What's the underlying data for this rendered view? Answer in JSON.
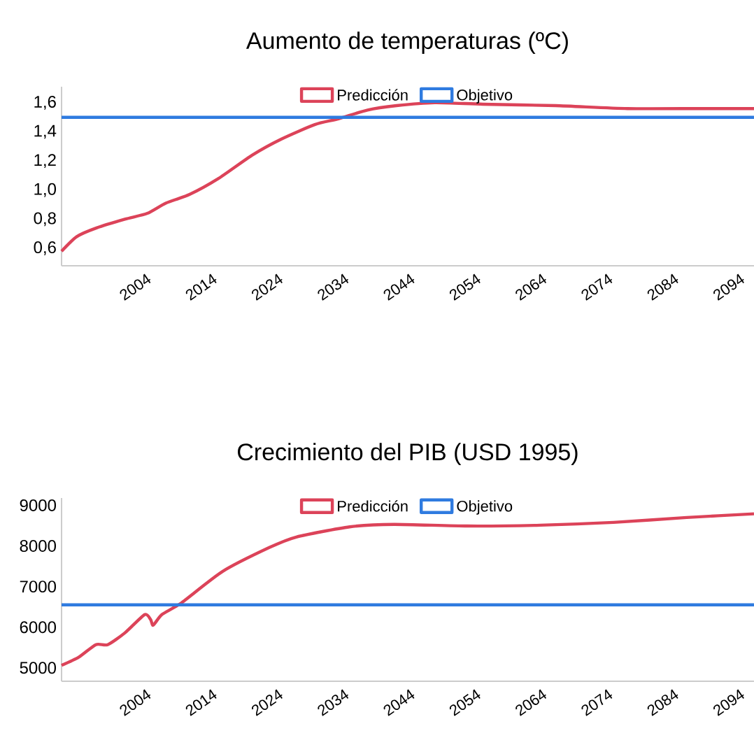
{
  "chart_data": [
    {
      "type": "line",
      "title": "Aumento de temperaturas (ºC)",
      "legend": "top",
      "xlim": [
        1991,
        2096
      ],
      "xticks": [
        2004,
        2014,
        2024,
        2034,
        2044,
        2054,
        2064,
        2074,
        2084,
        2094
      ],
      "ylim": [
        0.48,
        1.71
      ],
      "yticks": [
        {
          "value": 0.6,
          "label": "0,6"
        },
        {
          "value": 0.8,
          "label": "0,8"
        },
        {
          "value": 1.0,
          "label": "1,0"
        },
        {
          "value": 1.2,
          "label": "1,2"
        },
        {
          "value": 1.4,
          "label": "1,4"
        },
        {
          "value": 1.6,
          "label": "1,6"
        }
      ],
      "series": [
        {
          "name": "Predicción",
          "color": "#dc4359",
          "x": [
            1991,
            1993.3,
            1996.3,
            2000.6,
            2004,
            2006.8,
            2010.4,
            2014.8,
            2019.9,
            2024.3,
            2029.4,
            2033,
            2037.4,
            2041.8,
            2047.6,
            2054.9,
            2065.9,
            2076.8,
            2087.8,
            2096
          ],
          "values": [
            0.58,
            0.68,
            0.74,
            0.8,
            0.84,
            0.91,
            0.97,
            1.08,
            1.24,
            1.35,
            1.45,
            1.49,
            1.55,
            1.58,
            1.6,
            1.59,
            1.58,
            1.56,
            1.56,
            1.56
          ]
        },
        {
          "name": "Objetivo",
          "color": "#2f7be0",
          "x": [
            1991,
            2096
          ],
          "values": [
            1.5,
            1.5
          ]
        }
      ]
    },
    {
      "type": "line",
      "title": "Crecimiento del PIB (USD 1995)",
      "legend": "top",
      "xlim": [
        1991,
        2096
      ],
      "xticks": [
        2004,
        2014,
        2024,
        2034,
        2044,
        2054,
        2064,
        2074,
        2084,
        2094
      ],
      "ylim": [
        4670,
        9180
      ],
      "yticks": [
        5000,
        6000,
        7000,
        8000,
        9000
      ],
      "series": [
        {
          "name": "Predicción",
          "color": "#dc4359",
          "x": [
            1991,
            1993.6,
            1996.2,
            1998,
            2000.6,
            2003.6,
            2004.5,
            2004.9,
            2006.2,
            2009.1,
            2015.4,
            2022.5,
            2026.6,
            2034.7,
            2041.4,
            2052.5,
            2063.6,
            2074.7,
            2085.8,
            2096
          ],
          "values": [
            5060,
            5260,
            5570,
            5570,
            5860,
            6310,
            6190,
            6050,
            6310,
            6590,
            7370,
            7960,
            8220,
            8470,
            8530,
            8490,
            8510,
            8580,
            8700,
            8790
          ]
        },
        {
          "name": "Objetivo",
          "color": "#2f7be0",
          "x": [
            1991,
            2096
          ],
          "values": [
            6550,
            6550
          ]
        }
      ]
    }
  ]
}
